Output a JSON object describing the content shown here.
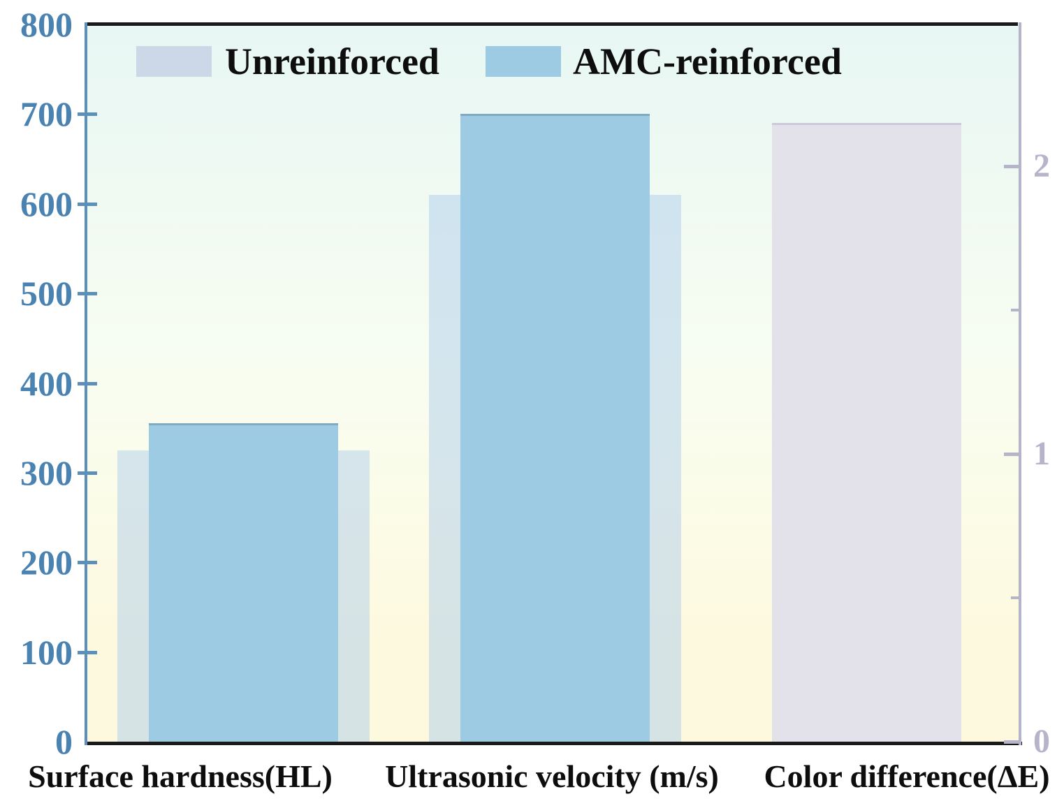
{
  "legend": {
    "items": [
      {
        "label": "Unreinforced",
        "swatch_color": "#ccd8e8"
      },
      {
        "label": "AMC-reinforced",
        "swatch_color": "#9ccbe3"
      }
    ]
  },
  "chart_data": {
    "type": "bar",
    "title": "",
    "categories": [
      "Surface hardness(HL)",
      "Ultrasonic velocity (m/s)",
      "Color difference(ΔE)"
    ],
    "series": [
      {
        "name": "Unreinforced",
        "axis": "left",
        "color": "rgba(175,206,235,0.5)",
        "values": [
          325,
          610,
          null
        ]
      },
      {
        "name": "AMC-reinforced",
        "axis": "left",
        "color": "#9ccbe3",
        "values": [
          355,
          700,
          null
        ]
      },
      {
        "name": "Color difference",
        "axis": "right",
        "color": "#e3e2eb",
        "values": [
          null,
          null,
          2.15
        ]
      }
    ],
    "left_axis": {
      "range": [
        0,
        800
      ],
      "tick_values": [
        0,
        100,
        200,
        300,
        400,
        500,
        600,
        700,
        800
      ],
      "tick_labels": [
        "0",
        "100",
        "200",
        "300",
        "400",
        "500",
        "600",
        "700",
        "800"
      ],
      "text_color": "#4a82b1",
      "line_color": "#5c8fba"
    },
    "right_axis": {
      "range": [
        0,
        2.5
      ],
      "tick_values": [
        0,
        1,
        2
      ],
      "tick_labels": [
        "0",
        "1",
        "2"
      ],
      "minor_tick_values": [
        0.5,
        1.5
      ],
      "text_color": "#b6b4c9",
      "line_color": "#b6b4c9"
    },
    "grid": false,
    "legend_position": "top-left-inside",
    "plot_background_gradient": [
      "#e8f7f4",
      "#f7fdf2",
      "#fdf9df"
    ]
  }
}
